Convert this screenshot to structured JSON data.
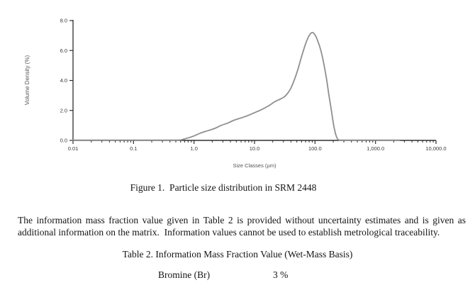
{
  "figure": {
    "caption": "Figure 1.  Particle size distribution in SRM 2448"
  },
  "chart": {
    "ylabel": "Volume Density (%)",
    "xlabel": "Size Classes (µm)",
    "y_ticks": [
      "0.0",
      "2.0",
      "4.0",
      "6.0",
      "8.0"
    ],
    "x_ticks": [
      "0.01",
      "0.1",
      "1.0",
      "10.0",
      "100.0",
      "1,000.0",
      "10,000.0"
    ],
    "line_color": "#8f8f8f",
    "axis_color": "#2e2e2e",
    "tick_label_color": "#3a3a3a",
    "axis_title_color": "#555555"
  },
  "chart_data": {
    "type": "line",
    "title": "",
    "xlabel": "Size Classes (µm)",
    "ylabel": "Volume Density (%)",
    "x_scale": "log",
    "xlim": [
      0.01,
      10000
    ],
    "ylim": [
      0,
      8
    ],
    "grid": false,
    "legend": false,
    "x": [
      0.01,
      0.1,
      0.3,
      0.5,
      0.6,
      0.7,
      0.85,
      1.0,
      1.3,
      1.7,
      2.2,
      2.8,
      3.6,
      4.6,
      6.0,
      7.7,
      10,
      13,
      17,
      22,
      28,
      33,
      40,
      50,
      60,
      70,
      80,
      90,
      100,
      112,
      125,
      140,
      155,
      170,
      185,
      200,
      215,
      230,
      245,
      260,
      300,
      600,
      1500,
      2500
    ],
    "y": [
      0,
      0,
      0,
      0,
      0.03,
      0.1,
      0.2,
      0.3,
      0.5,
      0.65,
      0.8,
      1.0,
      1.15,
      1.35,
      1.5,
      1.65,
      1.85,
      2.05,
      2.3,
      2.6,
      2.8,
      3.0,
      3.5,
      4.5,
      5.6,
      6.45,
      7.0,
      7.2,
      7.05,
      6.6,
      6.0,
      5.1,
      4.1,
      3.0,
      2.1,
      1.2,
      0.55,
      0.18,
      0.04,
      0,
      0,
      0,
      0,
      0
    ]
  },
  "paragraph": {
    "line1": "The information mass fraction value given in Table 2 is provided without uncertainty estimates and is given as",
    "line2": "additional information on the matrix.  Information values cannot be used to establish metrological traceability."
  },
  "table": {
    "title": "Table 2. Information Mass Fraction Value (Wet-Mass Basis)",
    "rows": [
      {
        "analyte": "Bromine (Br)",
        "value": "3 %"
      }
    ]
  }
}
